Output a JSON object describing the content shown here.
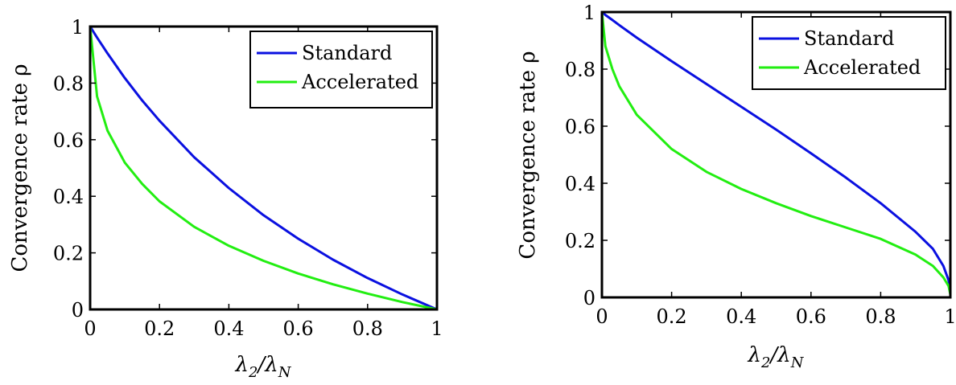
{
  "chart_data": [
    {
      "type": "line",
      "title": "",
      "xlabel": "λ2/λN",
      "ylabel": "Convergence rate ρ",
      "xlim": [
        0,
        1
      ],
      "ylim": [
        0,
        1
      ],
      "xticks": [
        "0",
        "0.2",
        "0.4",
        "0.6",
        "0.8",
        "1"
      ],
      "yticks": [
        "0",
        "0.2",
        "0.4",
        "0.6",
        "0.8",
        "1"
      ],
      "grid": false,
      "legend_position": "top-right",
      "x": [
        0,
        0.02,
        0.05,
        0.1,
        0.15,
        0.2,
        0.3,
        0.4,
        0.5,
        0.6,
        0.7,
        0.8,
        0.9,
        1.0
      ],
      "series": [
        {
          "name": "Standard",
          "color": "#0a10e0",
          "values": [
            1.0,
            0.961,
            0.905,
            0.818,
            0.739,
            0.667,
            0.538,
            0.429,
            0.333,
            0.25,
            0.176,
            0.111,
            0.053,
            0.0
          ]
        },
        {
          "name": "Accelerated",
          "color": "#22ee11",
          "values": [
            1.0,
            0.753,
            0.632,
            0.519,
            0.444,
            0.382,
            0.292,
            0.225,
            0.172,
            0.127,
            0.089,
            0.056,
            0.026,
            0.0
          ]
        }
      ]
    },
    {
      "type": "line",
      "title": "",
      "xlabel": "λ2/λN",
      "ylabel": "Convergence rate ρ",
      "xlim": [
        0,
        1
      ],
      "ylim": [
        0,
        1
      ],
      "xticks": [
        "0",
        "0.2",
        "0.4",
        "0.6",
        "0.8",
        "1"
      ],
      "yticks": [
        "0",
        "0.2",
        "0.4",
        "0.6",
        "0.8",
        "1"
      ],
      "grid": false,
      "legend_position": "top-right",
      "x": [
        0,
        0.01,
        0.03,
        0.05,
        0.1,
        0.2,
        0.3,
        0.4,
        0.5,
        0.6,
        0.7,
        0.8,
        0.9,
        0.95,
        0.98,
        0.995,
        1.0
      ],
      "series": [
        {
          "name": "Standard",
          "color": "#0a10e0",
          "values": [
            1.0,
            0.99,
            0.972,
            0.954,
            0.91,
            0.828,
            0.748,
            0.668,
            0.588,
            0.505,
            0.42,
            0.33,
            0.23,
            0.17,
            0.11,
            0.06,
            0.02
          ]
        },
        {
          "name": "Accelerated",
          "color": "#22ee11",
          "values": [
            1.0,
            0.88,
            0.8,
            0.74,
            0.64,
            0.52,
            0.44,
            0.38,
            0.33,
            0.285,
            0.245,
            0.205,
            0.15,
            0.11,
            0.07,
            0.04,
            0.01
          ]
        }
      ]
    }
  ]
}
